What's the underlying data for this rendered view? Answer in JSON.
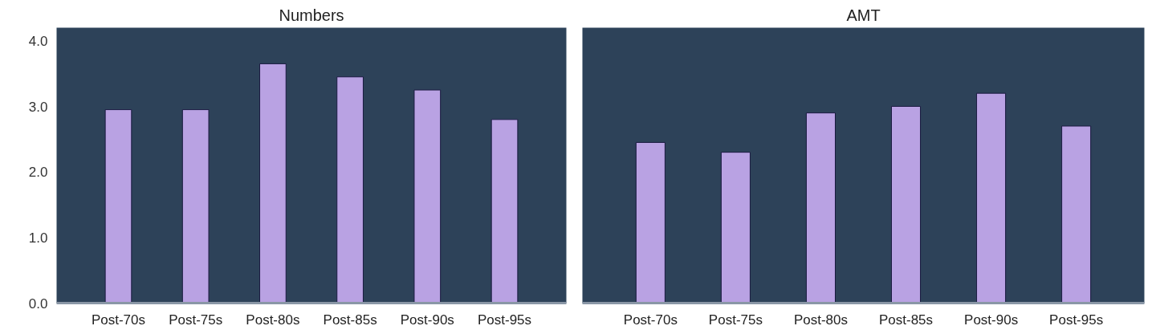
{
  "chart_data": [
    {
      "type": "bar",
      "title": "Numbers",
      "categories": [
        "Post-70s",
        "Post-75s",
        "Post-80s",
        "Post-85s",
        "Post-90s",
        "Post-95s"
      ],
      "values": [
        2.95,
        2.95,
        3.65,
        3.45,
        3.25,
        2.8
      ],
      "color": "#b9a2e3",
      "ylim": [
        0,
        4.2
      ],
      "yticks": [
        {
          "value": 0,
          "label": "0.0"
        },
        {
          "value": 1,
          "label": "1.0"
        },
        {
          "value": 2,
          "label": "2.0"
        },
        {
          "value": 3,
          "label": "3.0"
        },
        {
          "value": 4,
          "label": "4.0"
        }
      ],
      "grid": false
    },
    {
      "type": "bar",
      "title": "AMT",
      "categories": [
        "Post-70s",
        "Post-75s",
        "Post-80s",
        "Post-85s",
        "Post-90s",
        "Post-95s"
      ],
      "values": [
        2.45,
        2.3,
        2.9,
        3.0,
        3.2,
        2.7
      ],
      "color": "#b9a2e3",
      "ylim": [
        0,
        4.2
      ],
      "grid": false,
      "tick_labels": "x"
    }
  ]
}
